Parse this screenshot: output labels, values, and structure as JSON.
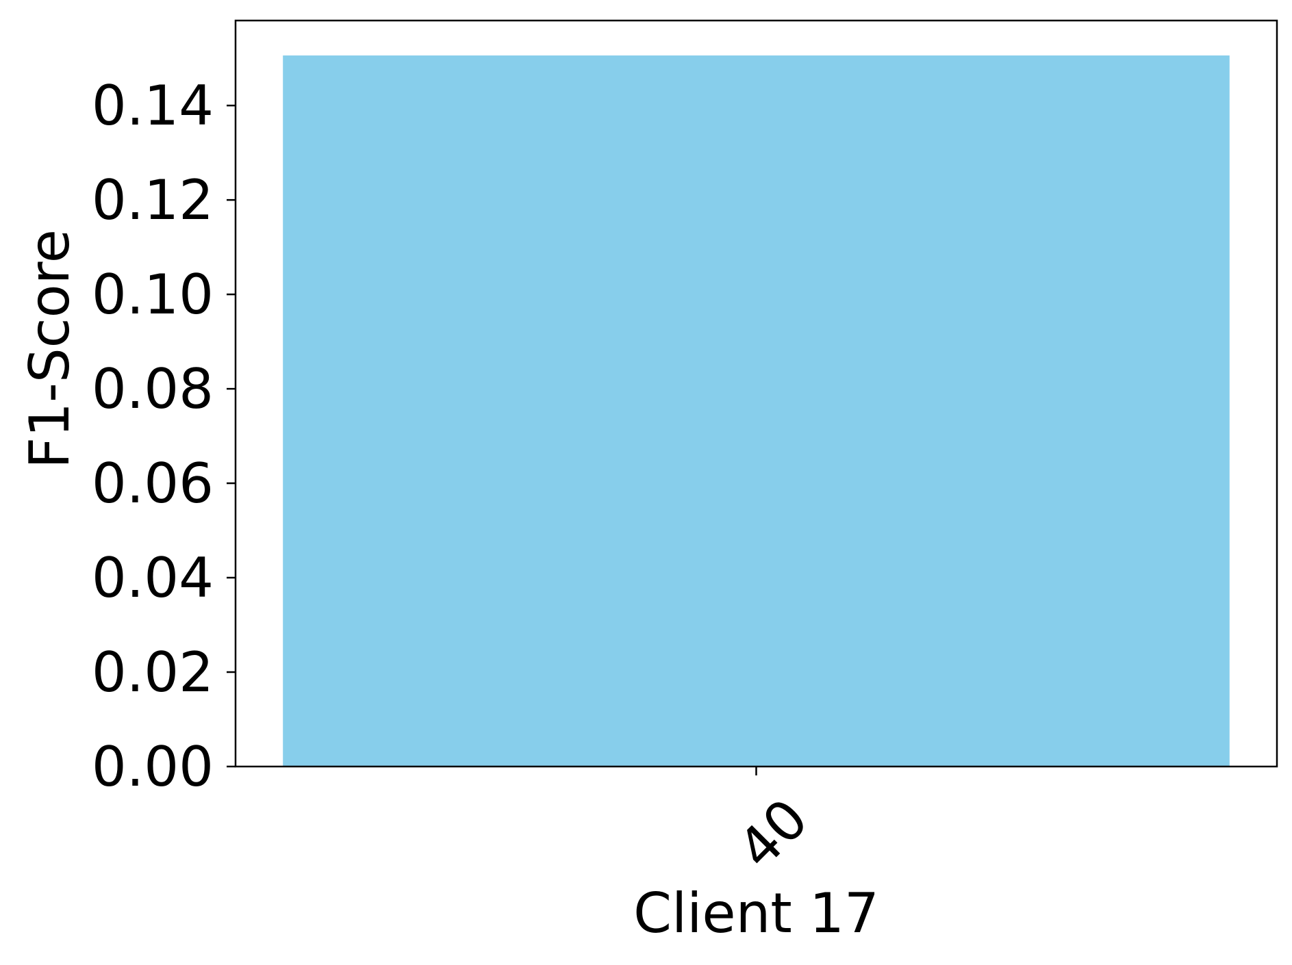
{
  "chart_data": {
    "type": "bar",
    "categories": [
      "40"
    ],
    "values": [
      0.1506
    ],
    "title": "",
    "xlabel": "Client 17",
    "ylabel": "F1-Score",
    "ylim": [
      0,
      0.158
    ],
    "yticks": [
      0.0,
      0.02,
      0.04,
      0.06,
      0.08,
      0.1,
      0.12,
      0.14
    ],
    "ytick_labels": [
      "0.00",
      "0.02",
      "0.04",
      "0.06",
      "0.08",
      "0.10",
      "0.12",
      "0.14"
    ],
    "xtick_rotation": 45,
    "grid": false,
    "legend": "none",
    "bar_color": "#87ceeb",
    "axis_color": "#000000"
  }
}
